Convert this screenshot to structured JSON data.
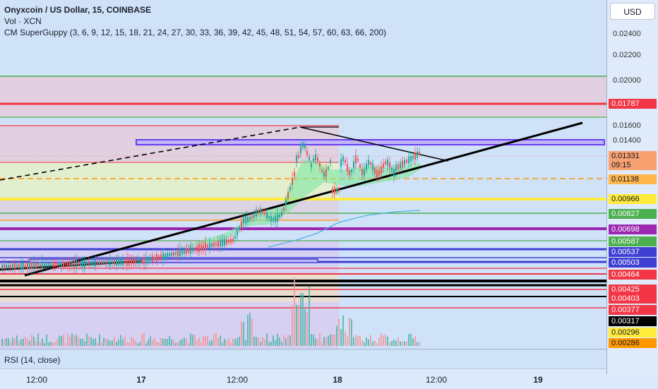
{
  "legend": {
    "title": "Onyxcoin / US Dollar, 15, COINBASE",
    "volume": "Vol · XCN",
    "indicator": "CM SuperGuppy (3, 6, 9, 12, 15, 18, 21, 24, 27, 30, 33, 36, 39, 42, 45, 48, 51, 54, 57, 60, 63, 66, 200)"
  },
  "currency_button": "USD",
  "rsi_label": "RSI (14, close)",
  "price_ticks": [
    "0.02400",
    "0.02200",
    "0.02000",
    "0.01600",
    "0.01400"
  ],
  "price_tags": [
    {
      "value": "0.01787",
      "color": "#f23645",
      "text_color": "#ffffff"
    },
    {
      "value": "0.01331",
      "color": "#f7a070",
      "text_color": "#131722"
    },
    {
      "value": "09:15",
      "color": "#f7a070",
      "text_color": "#131722"
    },
    {
      "value": "0.01138",
      "color": "#ffb74d",
      "text_color": "#131722"
    },
    {
      "value": "0.00966",
      "color": "#ffeb3b",
      "text_color": "#131722"
    },
    {
      "value": "0.00827",
      "color": "#4caf50",
      "text_color": "#ffffff"
    },
    {
      "value": "0.00698",
      "color": "#9c27b0",
      "text_color": "#ffffff"
    },
    {
      "value": "0.00587",
      "color": "#4caf50",
      "text_color": "#ffffff"
    },
    {
      "value": "0.00537",
      "color": "#3f3fd4",
      "text_color": "#ffffff"
    },
    {
      "value": "0.00503",
      "color": "#3f3fd4",
      "text_color": "#ffffff"
    },
    {
      "value": "0.00464",
      "color": "#f23645",
      "text_color": "#ffffff"
    },
    {
      "value": "0.00425",
      "color": "#f23645",
      "text_color": "#ffffff"
    },
    {
      "value": "0.00403",
      "color": "#f23645",
      "text_color": "#ffffff"
    },
    {
      "value": "0.00377",
      "color": "#f23645",
      "text_color": "#ffffff"
    },
    {
      "value": "0.00317",
      "color": "#000000",
      "text_color": "#ffffff"
    },
    {
      "value": "0.00296",
      "color": "#ffeb3b",
      "text_color": "#131722"
    },
    {
      "value": "0.00286",
      "color": "#ff9800",
      "text_color": "#131722"
    }
  ],
  "time_labels": [
    {
      "text": "12:00",
      "bold": false
    },
    {
      "text": "17",
      "bold": true
    },
    {
      "text": "12:00",
      "bold": false
    },
    {
      "text": "18",
      "bold": true
    },
    {
      "text": "12:00",
      "bold": false
    },
    {
      "text": "19",
      "bold": true
    }
  ],
  "colors": {
    "up_candle": "#26a69a",
    "down_candle": "#ef5350",
    "trendline": "#000000",
    "resistance_zone": "#7b5cff"
  }
}
